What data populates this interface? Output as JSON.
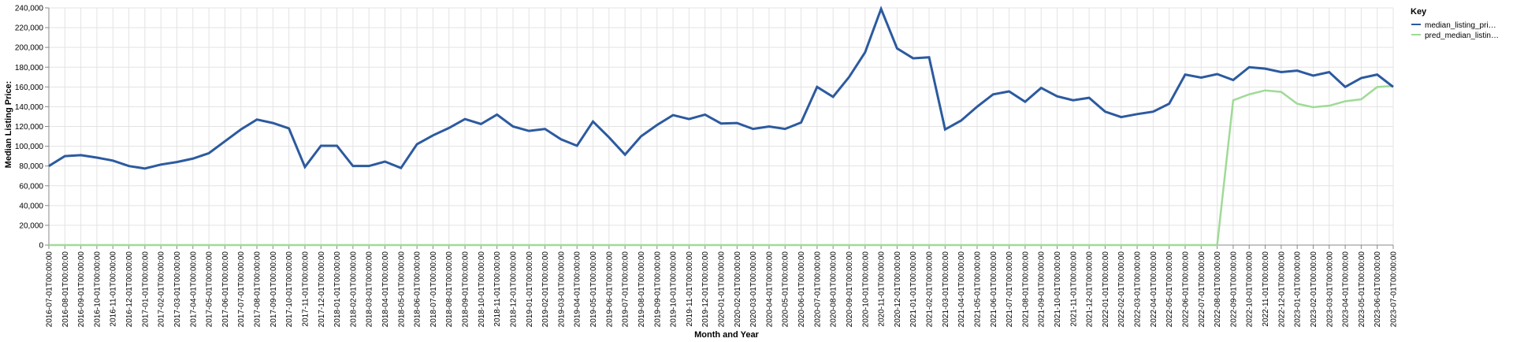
{
  "chart_data": {
    "type": "line",
    "xlabel": "Month and Year",
    "ylabel": "Median Listing Price:",
    "ylim": [
      0,
      240000
    ],
    "yticks": [
      "0",
      "20,000",
      "40,000",
      "60,000",
      "80,000",
      "100,000",
      "120,000",
      "140,000",
      "160,000",
      "180,000",
      "200,000",
      "220,000",
      "240,000"
    ],
    "grid": true,
    "legend": {
      "title": "Key",
      "position": "right",
      "labels": [
        "median_listing_pri…",
        "pred_median_listin…"
      ]
    },
    "x": [
      "2016-07-01T00:00:00",
      "2016-08-01T00:00:00",
      "2016-09-01T00:00:00",
      "2016-10-01T00:00:00",
      "2016-11-01T00:00:00",
      "2016-12-01T00:00:00",
      "2017-01-01T00:00:00",
      "2017-02-01T00:00:00",
      "2017-03-01T00:00:00",
      "2017-04-01T00:00:00",
      "2017-05-01T00:00:00",
      "2017-06-01T00:00:00",
      "2017-07-01T00:00:00",
      "2017-08-01T00:00:00",
      "2017-09-01T00:00:00",
      "2017-10-01T00:00:00",
      "2017-11-01T00:00:00",
      "2017-12-01T00:00:00",
      "2018-01-01T00:00:00",
      "2018-02-01T00:00:00",
      "2018-03-01T00:00:00",
      "2018-04-01T00:00:00",
      "2018-05-01T00:00:00",
      "2018-06-01T00:00:00",
      "2018-07-01T00:00:00",
      "2018-08-01T00:00:00",
      "2018-09-01T00:00:00",
      "2018-10-01T00:00:00",
      "2018-11-01T00:00:00",
      "2018-12-01T00:00:00",
      "2019-01-01T00:00:00",
      "2019-02-01T00:00:00",
      "2019-03-01T00:00:00",
      "2019-04-01T00:00:00",
      "2019-05-01T00:00:00",
      "2019-06-01T00:00:00",
      "2019-07-01T00:00:00",
      "2019-08-01T00:00:00",
      "2019-09-01T00:00:00",
      "2019-10-01T00:00:00",
      "2019-11-01T00:00:00",
      "2019-12-01T00:00:00",
      "2020-01-01T00:00:00",
      "2020-02-01T00:00:00",
      "2020-03-01T00:00:00",
      "2020-04-01T00:00:00",
      "2020-05-01T00:00:00",
      "2020-06-01T00:00:00",
      "2020-07-01T00:00:00",
      "2020-08-01T00:00:00",
      "2020-09-01T00:00:00",
      "2020-10-01T00:00:00",
      "2020-11-01T00:00:00",
      "2020-12-01T00:00:00",
      "2021-01-01T00:00:00",
      "2021-02-01T00:00:00",
      "2021-03-01T00:00:00",
      "2021-04-01T00:00:00",
      "2021-05-01T00:00:00",
      "2021-06-01T00:00:00",
      "2021-07-01T00:00:00",
      "2021-08-01T00:00:00",
      "2021-09-01T00:00:00",
      "2021-10-01T00:00:00",
      "2021-11-01T00:00:00",
      "2021-12-01T00:00:00",
      "2022-01-01T00:00:00",
      "2022-02-01T00:00:00",
      "2022-03-01T00:00:00",
      "2022-04-01T00:00:00",
      "2022-05-01T00:00:00",
      "2022-06-01T00:00:00",
      "2022-07-01T00:00:00",
      "2022-08-01T00:00:00",
      "2022-09-01T00:00:00",
      "2022-10-01T00:00:00",
      "2022-11-01T00:00:00",
      "2022-12-01T00:00:00",
      "2023-01-01T00:00:00",
      "2023-02-01T00:00:00",
      "2023-03-01T00:00:00",
      "2023-04-01T00:00:00",
      "2023-05-01T00:00:00",
      "2023-06-01T00:00:00",
      "2023-07-01T00:00:00"
    ],
    "series": [
      {
        "name": "median_listing_pri…",
        "color": "#2c5a9f",
        "values": [
          80000,
          90000,
          91000,
          88500,
          85500,
          80000,
          77500,
          81500,
          84000,
          87500,
          93000,
          105000,
          117000,
          127000,
          123500,
          118000,
          79000,
          100500,
          100500,
          80000,
          80000,
          84500,
          78000,
          102000,
          111000,
          118500,
          127500,
          122500,
          132000,
          120000,
          115500,
          117500,
          107000,
          100500,
          125000,
          109000,
          91500,
          110000,
          121500,
          131500,
          127500,
          132000,
          123000,
          123500,
          117500,
          120000,
          117500,
          124000,
          160000,
          150000,
          170000,
          195000,
          239000,
          199000,
          189000,
          190000,
          117000,
          126000,
          140000,
          152500,
          155500,
          145000,
          159000,
          150500,
          146500,
          149000,
          135000,
          129500,
          132500,
          135000,
          143000,
          172500,
          169500,
          173000,
          167000,
          180000,
          178500,
          175000,
          176500,
          171500,
          175000,
          160000,
          169000,
          172500,
          160000
        ]
      },
      {
        "name": "pred_median_listin…",
        "color": "#9fdb96",
        "values": [
          0,
          0,
          0,
          0,
          0,
          0,
          0,
          0,
          0,
          0,
          0,
          0,
          0,
          0,
          0,
          0,
          0,
          0,
          0,
          0,
          0,
          0,
          0,
          0,
          0,
          0,
          0,
          0,
          0,
          0,
          0,
          0,
          0,
          0,
          0,
          0,
          0,
          0,
          0,
          0,
          0,
          0,
          0,
          0,
          0,
          0,
          0,
          0,
          0,
          0,
          0,
          0,
          0,
          0,
          0,
          0,
          0,
          0,
          0,
          0,
          0,
          0,
          0,
          0,
          0,
          0,
          0,
          0,
          0,
          0,
          0,
          0,
          0,
          0,
          146500,
          152500,
          156500,
          155000,
          143000,
          139500,
          141000,
          145500,
          147500,
          160000,
          161000
        ]
      }
    ]
  }
}
